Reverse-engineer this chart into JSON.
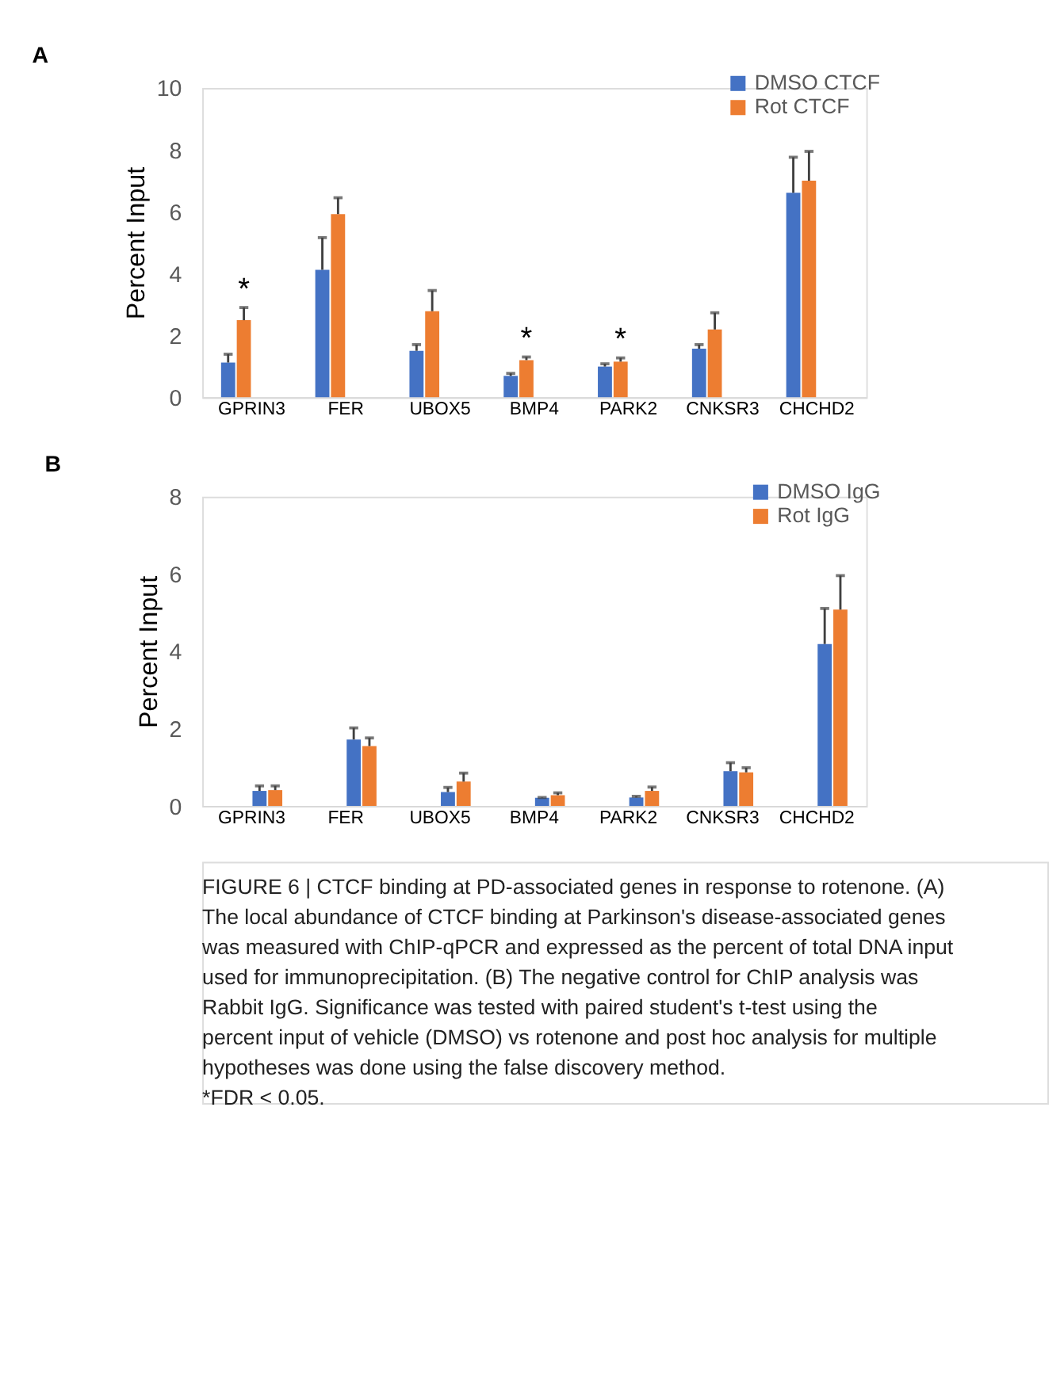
{
  "chart_data": [
    {
      "type": "bar",
      "title": "A",
      "ylabel": "Percent Input",
      "categories": [
        "GPRIN3",
        "FER",
        "UBOX5",
        "BMP4",
        "PARK2",
        "CNKSR3",
        "CHCHD2"
      ],
      "series": [
        {
          "name": "DMSO CTCF",
          "color": "#4472c4",
          "values": [
            1.12,
            4.12,
            1.5,
            0.69,
            0.99,
            1.57,
            6.61
          ],
          "errors": [
            [
              1.12,
              1.39
            ],
            [
              4.12,
              5.16
            ],
            [
              1.5,
              1.7
            ],
            [
              0.69,
              0.77
            ],
            [
              0.99,
              1.08
            ],
            [
              1.57,
              1.7
            ],
            [
              6.61,
              7.76
            ]
          ]
        },
        {
          "name": "Rot CTCF",
          "color": "#ed7d31",
          "values": [
            2.49,
            5.92,
            2.78,
            1.2,
            1.15,
            2.19,
            7.0
          ],
          "value_labels": [
            "*",
            null,
            null,
            "*",
            "*",
            null,
            null
          ],
          "errors": [
            [
              2.49,
              2.9
            ],
            [
              5.92,
              6.45
            ],
            [
              2.78,
              3.45
            ],
            [
              1.2,
              1.3
            ],
            [
              1.15,
              1.27
            ],
            [
              2.19,
              2.73
            ],
            [
              7.0,
              7.95
            ]
          ]
        }
      ],
      "ylim": [
        0,
        10
      ],
      "yticks": [
        0,
        2,
        4,
        6,
        8,
        10
      ],
      "grid": false,
      "legend": "top right"
    },
    {
      "type": "bar",
      "title": "B",
      "ylabel": "Percent Input",
      "categories": [
        "GPRIN3",
        "FER",
        "UBOX5",
        "BMP4",
        "PARK2",
        "CNKSR3",
        "CHCHD2"
      ],
      "series": [
        {
          "name": "DMSO IgG",
          "color": "#4472c4",
          "values": [
            0.39,
            1.72,
            0.36,
            0.21,
            0.22,
            0.9,
            4.19
          ],
          "errors": [
            [
              0.39,
              0.52
            ],
            [
              1.72,
              2.02
            ],
            [
              0.36,
              0.48
            ],
            [
              0.21,
              0.22
            ],
            [
              0.22,
              0.25
            ],
            [
              0.9,
              1.12
            ],
            [
              4.19,
              5.11
            ]
          ]
        },
        {
          "name": "Rot IgG",
          "color": "#ed7d31",
          "values": [
            0.41,
            1.55,
            0.63,
            0.28,
            0.39,
            0.87,
            5.08
          ],
          "errors": [
            [
              0.41,
              0.52
            ],
            [
              1.55,
              1.76
            ],
            [
              0.63,
              0.85
            ],
            [
              0.28,
              0.34
            ],
            [
              0.39,
              0.49
            ],
            [
              0.87,
              0.99
            ],
            [
              5.08,
              5.96
            ]
          ]
        }
      ],
      "ylim": [
        0,
        8
      ],
      "yticks": [
        0,
        2,
        4,
        6,
        8
      ],
      "grid": false,
      "legend": "top right",
      "annotations": [
        "FIGURE 6 | CTCF binding at PD-associated genes in response to rotenone. (A) The local abundance of CTCF binding at Parkinson's disease-associated genes was measured with ChIP-qPCR and expressed as the percent of total DNA input used for immunoprecipitation. (B) The negative control for ChIP analysis was Rabbit IgG. Significance was tested with paired student's t-test using the percent input of vehicle (DMSO) vs rotenone and post hoc analysis for multiple hypotheses was done using the false discovery method.",
        "*FDR < 0.05."
      ]
    }
  ]
}
